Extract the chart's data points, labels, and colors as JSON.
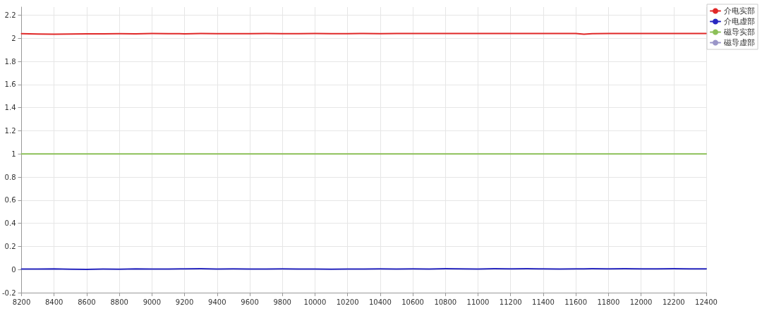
{
  "chart_data": {
    "type": "line",
    "x": [
      8200,
      8300,
      8400,
      8500,
      8600,
      8700,
      8800,
      8900,
      9000,
      9100,
      9200,
      9300,
      9400,
      9500,
      9600,
      9700,
      9800,
      9900,
      10000,
      10100,
      10200,
      10300,
      10400,
      10500,
      10600,
      10700,
      10800,
      10900,
      11000,
      11100,
      11200,
      11300,
      11400,
      11500,
      11600,
      11650,
      11700,
      11800,
      11900,
      12000,
      12100,
      12200,
      12300,
      12400
    ],
    "series": [
      {
        "name": "介电实部",
        "color": "#e02828",
        "values": [
          2.04,
          2.037,
          2.035,
          2.037,
          2.038,
          2.038,
          2.04,
          2.039,
          2.041,
          2.04,
          2.039,
          2.041,
          2.04,
          2.04,
          2.04,
          2.041,
          2.04,
          2.04,
          2.041,
          2.04,
          2.04,
          2.041,
          2.04,
          2.042,
          2.041,
          2.042,
          2.042,
          2.041,
          2.041,
          2.042,
          2.041,
          2.042,
          2.042,
          2.041,
          2.042,
          2.035,
          2.04,
          2.041,
          2.041,
          2.042,
          2.041,
          2.041,
          2.042,
          2.042
        ]
      },
      {
        "name": "介电虚部",
        "color": "#2828c0",
        "values": [
          0.005,
          0.004,
          0.006,
          0.003,
          0.002,
          0.004,
          0.003,
          0.006,
          0.005,
          0.004,
          0.006,
          0.007,
          0.005,
          0.006,
          0.004,
          0.005,
          0.006,
          0.004,
          0.005,
          0.003,
          0.004,
          0.005,
          0.006,
          0.004,
          0.006,
          0.005,
          0.007,
          0.006,
          0.005,
          0.007,
          0.006,
          0.007,
          0.006,
          0.005,
          0.006,
          0.006,
          0.007,
          0.006,
          0.007,
          0.006,
          0.006,
          0.007,
          0.006,
          0.006
        ]
      },
      {
        "name": "磁导实部",
        "color": "#8cc058",
        "values": [
          1,
          1,
          1,
          1,
          1,
          1,
          1,
          1,
          1,
          1,
          1,
          1,
          1,
          1,
          1,
          1,
          1,
          1,
          1,
          1,
          1,
          1,
          1,
          1,
          1,
          1,
          1,
          1,
          1,
          1,
          1,
          1,
          1,
          1,
          1,
          1,
          1,
          1,
          1,
          1,
          1,
          1,
          1,
          1
        ]
      },
      {
        "name": "磁导虚部",
        "color": "#9a96c8",
        "values": [
          null,
          null,
          null,
          null,
          null,
          null,
          null,
          null,
          null,
          null,
          null,
          null,
          null,
          null,
          null,
          null,
          null,
          null,
          null,
          null,
          null,
          null,
          null,
          null,
          null,
          null,
          null,
          null,
          null,
          null,
          null,
          null,
          null,
          null,
          null,
          null,
          null,
          null,
          null,
          null,
          null,
          null,
          null,
          null
        ]
      }
    ],
    "xlim": [
      8200,
      12400
    ],
    "xticks": [
      {
        "value": 8200,
        "label": "8200"
      },
      {
        "value": 8400,
        "label": "8400"
      },
      {
        "value": 8600,
        "label": "8600"
      },
      8800,
      9000,
      9200,
      9400,
      9600,
      9800,
      10000,
      10200,
      10400,
      10600,
      10800,
      11000,
      11200,
      11400,
      11600,
      11800,
      12000,
      12200,
      12400
    ],
    "ylim": [
      -0.2,
      2.27
    ],
    "yticks": [
      -0.2,
      0,
      0.2,
      0.4,
      0.6,
      0.8,
      1,
      1.2,
      1.4,
      1.6,
      1.8,
      2,
      2.2
    ],
    "grid": true,
    "legend": "top right",
    "marker": "none",
    "line_style": "solid"
  }
}
